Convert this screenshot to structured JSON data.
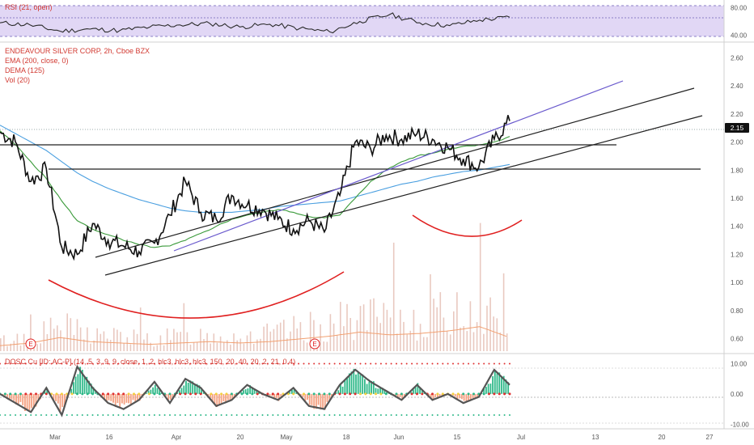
{
  "rsi_panel": {
    "legend": "RSI (21, open)",
    "ticks": [
      "80.00",
      "40.00"
    ],
    "colors": {
      "band": "#e1d7f5",
      "line": "#2a2a2a",
      "legend": "#d23a32"
    },
    "chart_data": {
      "type": "line",
      "x": [
        "Feb 26",
        "Mar 5",
        "Mar 12",
        "Mar 19",
        "Mar 26",
        "Apr 2",
        "Apr 9",
        "Apr 16",
        "Apr 23",
        "Apr 30",
        "May 7",
        "May 14",
        "May 21",
        "May 28",
        "Jun 4",
        "Jun 11",
        "Jun 18",
        "Jun 22"
      ],
      "values": [
        58,
        55,
        46,
        49,
        47,
        52,
        55,
        57,
        52,
        56,
        50,
        45,
        60,
        70,
        58,
        54,
        62,
        66
      ],
      "ylim": [
        35,
        85
      ],
      "upper_band": 70,
      "lower_band": 30
    }
  },
  "main_panel": {
    "title": "ENDEAVOUR SILVER CORP, 2h, Cboe BZX",
    "legend_lines": [
      "EMA (200, close, 0)",
      "DEMA (125)",
      "Vol (20)"
    ],
    "price_badge": "2.15",
    "ticks": [
      "2.60",
      "2.40",
      "2.20",
      "2.00",
      "1.80",
      "1.60",
      "1.40",
      "1.20",
      "1.00",
      "0.80",
      "0.60"
    ],
    "colors": {
      "price": "#111111",
      "ema": "#4a9fe0",
      "dema": "#3a9a3a",
      "fit_arc": "#e02020",
      "trendline": "#222222",
      "channel_top": "#6a5acd",
      "volume": "#e9c9c0",
      "volume_ma": "#f2a070",
      "title": "#d23a32",
      "legend": "#d23a32"
    },
    "earnings_markers": [
      "E",
      "E"
    ],
    "chart_data": {
      "type": "line",
      "x": [
        "Feb 26",
        "Mar 2",
        "Mar 5",
        "Mar 9",
        "Mar 12",
        "Mar 16",
        "Mar 19",
        "Mar 23",
        "Mar 26",
        "Mar 30",
        "Apr 2",
        "Apr 6",
        "Apr 9",
        "Apr 13",
        "Apr 16",
        "Apr 20",
        "Apr 23",
        "Apr 27",
        "Apr 30",
        "May 4",
        "May 7",
        "May 11",
        "May 14",
        "May 18",
        "May 21",
        "May 25",
        "May 28",
        "Jun 1",
        "Jun 4",
        "Jun 8",
        "Jun 11",
        "Jun 15",
        "Jun 18",
        "Jun 22"
      ],
      "series": [
        {
          "name": "EMA (200, close, 0)",
          "values": [
            2.12,
            2.06,
            2.0,
            1.94,
            1.86,
            1.78,
            1.72,
            1.67,
            1.63,
            1.59,
            1.56,
            1.53,
            1.51,
            1.5,
            1.5,
            1.5,
            1.51,
            1.52,
            1.54,
            1.55,
            1.56,
            1.57,
            1.58,
            1.61,
            1.64,
            1.67,
            1.7,
            1.72,
            1.75,
            1.77,
            1.79,
            1.8,
            1.82,
            1.84
          ]
        },
        {
          "name": "DEMA (125)",
          "values": [
            2.08,
            1.98,
            1.86,
            1.74,
            1.58,
            1.44,
            1.38,
            1.34,
            1.3,
            1.27,
            1.25,
            1.26,
            1.3,
            1.35,
            1.4,
            1.45,
            1.48,
            1.5,
            1.52,
            1.5,
            1.47,
            1.46,
            1.48,
            1.6,
            1.72,
            1.8,
            1.86,
            1.9,
            1.92,
            1.95,
            1.97,
            1.98,
            2.0,
            2.04
          ]
        },
        {
          "name": "Price",
          "values": [
            2.07,
            2.0,
            1.72,
            1.81,
            1.25,
            1.2,
            1.42,
            1.3,
            1.26,
            1.22,
            1.28,
            1.48,
            1.72,
            1.5,
            1.45,
            1.62,
            1.55,
            1.52,
            1.45,
            1.38,
            1.44,
            1.36,
            1.62,
            2.0,
            1.95,
            2.05,
            2.02,
            2.06,
            2.02,
            1.96,
            1.88,
            1.82,
            2.02,
            2.15
          ]
        }
      ],
      "horizontal_levels": [
        2.01,
        1.82
      ],
      "ylim": [
        0.5,
        2.7
      ]
    },
    "volume": {
      "chart_data": {
        "type": "bar",
        "x": [
          "Feb 26",
          "Mar 5",
          "Mar 12",
          "Mar 19",
          "Mar 26",
          "Apr 2",
          "Apr 9",
          "Apr 16",
          "Apr 23",
          "Apr 30",
          "May 7",
          "May 14",
          "May 21",
          "May 28",
          "Jun 4",
          "Jun 11",
          "Jun 18",
          "Jun 22"
        ],
        "values": [
          0.2,
          0.3,
          0.5,
          0.35,
          0.3,
          0.25,
          0.3,
          0.35,
          0.3,
          0.35,
          0.45,
          0.55,
          0.7,
          0.6,
          0.65,
          0.75,
          0.9,
          0.5
        ]
      }
    }
  },
  "osc_panel": {
    "legend": "DOSC Cu [ID: AC-P] (14, 5, 3, 9, 9, close, 1, 2, hlc3, hlc3, hlc3, 150, 20, 40, 20, 2, 21, 0.4)",
    "ticks": [
      "10.00",
      "0.00",
      "-10.00"
    ],
    "colors": {
      "osc_line": "#555555",
      "hist_pos": "#2db888",
      "hist_neg": "#f4a080",
      "dot_green": "#2db888",
      "dot_red": "#e03030",
      "dot_yellow": "#f4d03f"
    },
    "chart_data": {
      "type": "line",
      "x": [
        "Feb 26",
        "Mar 2",
        "Mar 5",
        "Mar 9",
        "Mar 12",
        "Mar 16",
        "Mar 19",
        "Mar 23",
        "Mar 26",
        "Mar 30",
        "Apr 2",
        "Apr 6",
        "Apr 9",
        "Apr 13",
        "Apr 16",
        "Apr 20",
        "Apr 23",
        "Apr 27",
        "Apr 30",
        "May 4",
        "May 7",
        "May 11",
        "May 14",
        "May 18",
        "May 21",
        "May 25",
        "May 28",
        "Jun 1",
        "Jun 4",
        "Jun 8",
        "Jun 11",
        "Jun 15",
        "Jun 18",
        "Jun 22"
      ],
      "values": [
        0,
        -3,
        -6,
        2,
        -7,
        9,
        2,
        -3,
        -5,
        -2,
        4,
        -3,
        5,
        2,
        -4,
        -2,
        3,
        0,
        -2,
        2,
        -4,
        -5,
        3,
        8,
        4,
        1,
        -2,
        3,
        -2,
        0,
        -3,
        -1,
        8,
        3
      ],
      "ylim": [
        -11,
        12
      ]
    }
  },
  "x_axis": {
    "labels": [
      "Mar",
      "16",
      "Apr",
      "20",
      "May",
      "18",
      "Jun",
      "15",
      "Jul",
      "13",
      "20",
      "27"
    ]
  }
}
